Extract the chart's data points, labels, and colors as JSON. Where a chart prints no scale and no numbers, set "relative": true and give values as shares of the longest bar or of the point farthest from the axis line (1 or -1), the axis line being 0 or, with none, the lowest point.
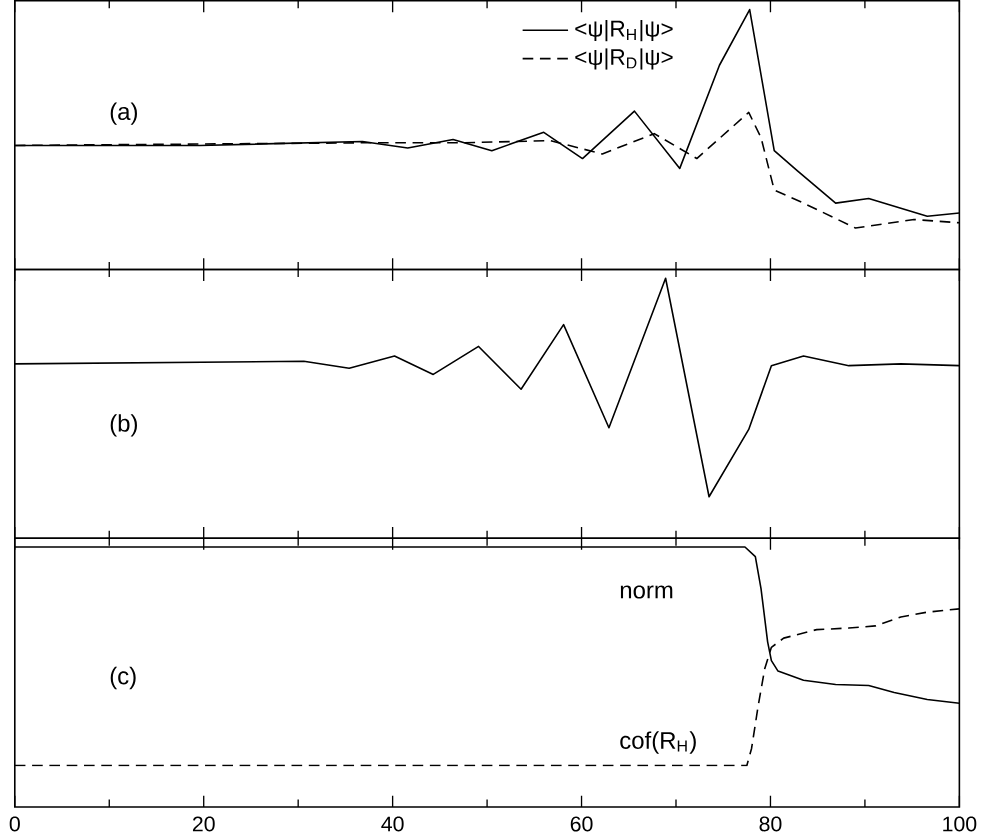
{
  "chart_data": [
    {
      "type": "line",
      "relative": true,
      "xlim": [
        0,
        100
      ],
      "xticks": [
        0,
        20,
        40,
        60,
        80,
        100
      ],
      "tick_labels": false,
      "legend": "top",
      "annotations": [
        "(a)"
      ],
      "series": [
        {
          "name": "<ψ|R$_{H}$|ψ>",
          "color": "#000000",
          "line_style": "solid",
          "x": [
            0,
            19.6,
            36.8,
            41.6,
            46.4,
            50.5,
            56.0,
            60.1,
            65.6,
            70.4,
            74.6,
            77.8,
            80.4,
            82.8,
            86.9,
            90.4,
            96.6,
            100
          ],
          "values": [
            0.378,
            0.378,
            0.396,
            0.366,
            0.405,
            0.354,
            0.438,
            0.318,
            0.535,
            0.273,
            0.745,
            1,
            0.354,
            0.264,
            0.114,
            0.135,
            0.054,
            0.069
          ]
        },
        {
          "name": "<ψ|R$_{D}$|ψ>",
          "color": "#000000",
          "line_style": "dashed",
          "x": [
            0,
            36.8,
            47.1,
            56.7,
            62.2,
            67.7,
            72.2,
            77.7,
            79.0,
            80.4,
            83.5,
            89.0,
            95.2,
            100
          ],
          "values": [
            0.378,
            0.39,
            0.39,
            0.4,
            0.339,
            0.432,
            0.318,
            0.529,
            0.414,
            0.174,
            0.114,
            0,
            0.039,
            0.024
          ]
        }
      ]
    },
    {
      "type": "line",
      "relative": true,
      "xlim": [
        0,
        100
      ],
      "xticks": [
        0,
        20,
        40,
        60,
        80,
        100
      ],
      "tick_labels": false,
      "annotations": [
        "(b)"
      ],
      "series": [
        {
          "color": "#000000",
          "line_style": "solid",
          "x": [
            0,
            30.6,
            35.4,
            40.2,
            44.3,
            49.1,
            53.6,
            58.1,
            62.9,
            68.9,
            73.5,
            77.7,
            80.1,
            83.5,
            88.3,
            93.8,
            100
          ],
          "values": [
            0.608,
            0.62,
            0.588,
            0.644,
            0.56,
            0.688,
            0.492,
            0.788,
            0.316,
            1,
            0,
            0.308,
            0.6,
            0.644,
            0.6,
            0.608,
            0.6
          ]
        }
      ]
    },
    {
      "type": "line",
      "relative": true,
      "xlim": [
        0,
        100
      ],
      "xticks": [
        0,
        20,
        40,
        60,
        80,
        100
      ],
      "tick_labels": "x",
      "annotations": [
        "(c)"
      ],
      "series": [
        {
          "name": "norm",
          "color": "#000000",
          "line_style": "solid",
          "x": [
            0,
            77.3,
            78.4,
            79.0,
            79.7,
            80.1,
            80.8,
            83.5,
            86.9,
            90.4,
            93.1,
            96.6,
            100
          ],
          "values": [
            1,
            1,
            0.956,
            0.81,
            0.566,
            0.48,
            0.432,
            0.39,
            0.371,
            0.366,
            0.334,
            0.302,
            0.285
          ]
        },
        {
          "name": "cof(R$_{H}$)",
          "color": "#000000",
          "line_style": "dashed",
          "x": [
            0,
            77.5,
            78.0,
            78.7,
            79.4,
            80.1,
            81.4,
            84.9,
            88.3,
            91.1,
            93.8,
            96.6,
            100
          ],
          "values": [
            0,
            0,
            0.078,
            0.273,
            0.444,
            0.541,
            0.583,
            0.622,
            0.629,
            0.639,
            0.68,
            0.702,
            0.717
          ]
        }
      ]
    }
  ]
}
